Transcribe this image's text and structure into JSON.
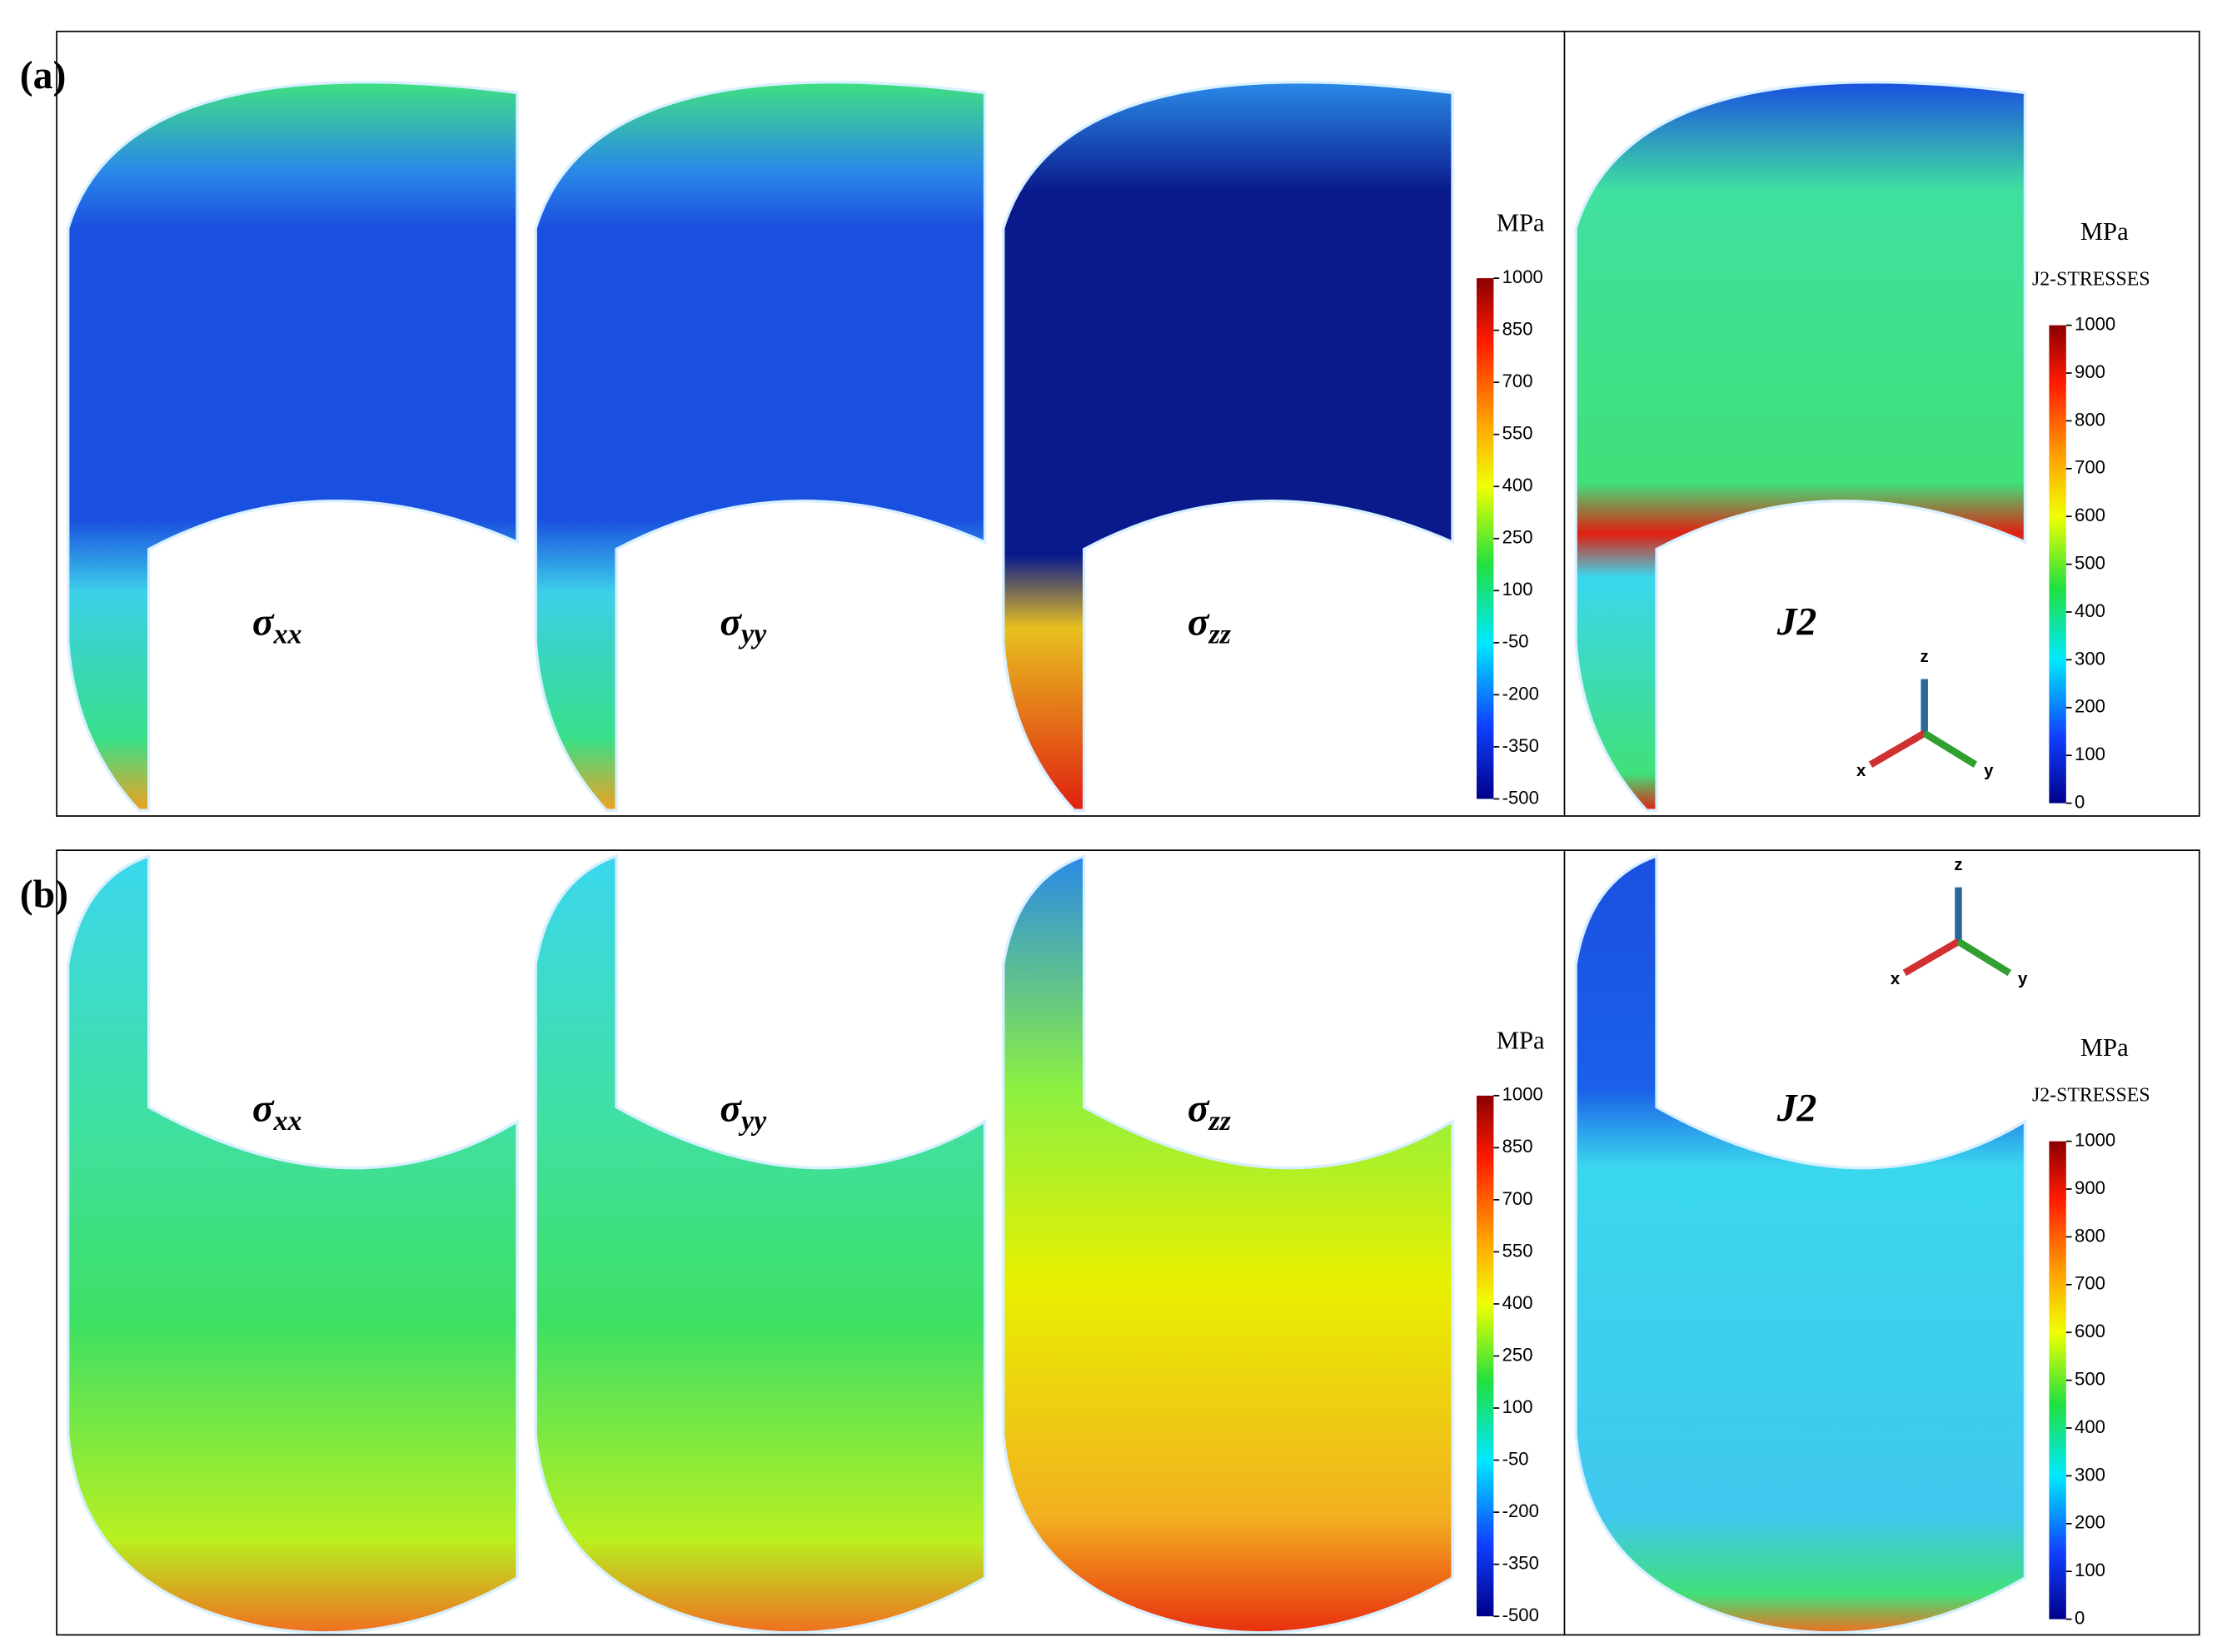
{
  "panels": [
    {
      "label": "(a)",
      "plots": [
        {
          "symbol": "σ",
          "subscript": "xx"
        },
        {
          "symbol": "σ",
          "subscript": "yy"
        },
        {
          "symbol": "σ",
          "subscript": "zz"
        },
        {
          "text": "J2"
        }
      ],
      "stress_colorbar": {
        "unit": "MPa",
        "ticks": [
          1000,
          850,
          700,
          550,
          400,
          250,
          100,
          -50,
          -200,
          -350,
          -500
        ]
      },
      "j2_colorbar": {
        "unit": "MPa",
        "title": "J2-STRESSES",
        "ticks": [
          1000,
          900,
          800,
          700,
          600,
          500,
          400,
          300,
          200,
          100,
          0
        ]
      },
      "axes": {
        "x": "x",
        "y": "y",
        "z": "z"
      }
    },
    {
      "label": "(b)",
      "plots": [
        {
          "symbol": "σ",
          "subscript": "xx"
        },
        {
          "symbol": "σ",
          "subscript": "yy"
        },
        {
          "symbol": "σ",
          "subscript": "zz"
        },
        {
          "text": "J2"
        }
      ],
      "stress_colorbar": {
        "unit": "MPa",
        "ticks": [
          1000,
          850,
          700,
          550,
          400,
          250,
          100,
          -50,
          -200,
          -350,
          -500
        ]
      },
      "j2_colorbar": {
        "unit": "MPa",
        "title": "J2-STRESSES",
        "ticks": [
          1000,
          900,
          800,
          700,
          600,
          500,
          400,
          300,
          200,
          100,
          0
        ]
      },
      "axes": {
        "x": "x",
        "y": "y",
        "z": "z"
      }
    }
  ]
}
